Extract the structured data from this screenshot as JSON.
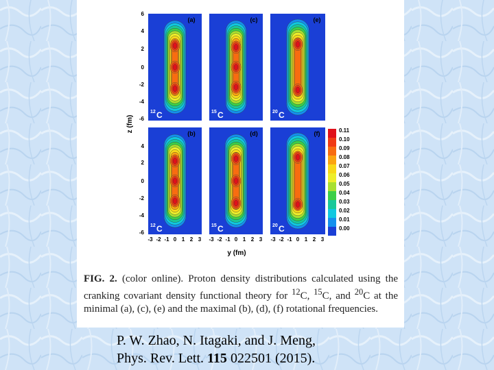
{
  "slide": {
    "background_color": "#cfe3f7",
    "citation": {
      "line1": "P. W. Zhao, N. Itagaki, and J. Meng,",
      "line2_journal": "Phys. Rev. Lett.",
      "line2_volume": "115",
      "line2_rest": "022501 (2015)."
    }
  },
  "figure": {
    "caption": {
      "label": "FIG. 2.",
      "text_part1": "(color online). Proton density distributions calculated using the cranking covariant density functional theory for ",
      "iso1_mass": "12",
      "iso1_sym": "C, ",
      "iso2_mass": "15",
      "iso2_sym": "C, and ",
      "iso3_mass": "20",
      "iso3_sym": "C at the minimal (a), (c), (e) and the maximal (b), (d), (f) rotational frequencies."
    },
    "panels": [
      {
        "label": "(a)",
        "isotope_mass": "12",
        "isotope_symbol": "C"
      },
      {
        "label": "(c)",
        "isotope_mass": "15",
        "isotope_symbol": "C"
      },
      {
        "label": "(e)",
        "isotope_mass": "20",
        "isotope_symbol": "C"
      },
      {
        "label": "(b)",
        "isotope_mass": "12",
        "isotope_symbol": "C"
      },
      {
        "label": "(d)",
        "isotope_mass": "15",
        "isotope_symbol": "C"
      },
      {
        "label": "(f)",
        "isotope_mass": "20",
        "isotope_symbol": "C"
      }
    ]
  },
  "chart_data": {
    "type": "heatmap",
    "title": "",
    "xlabel": "y (fm)",
    "ylabel": "z (fm)",
    "xlim": [
      -3,
      3
    ],
    "ylim": [
      -6,
      6
    ],
    "x_ticks": [
      "-3",
      "-2",
      "-1",
      "0",
      "1",
      "2",
      "3"
    ],
    "y_ticks": [
      "6",
      "4",
      "2",
      "0",
      "-2",
      "-4",
      "-6"
    ],
    "colorbar": {
      "ticks": [
        "0.11",
        "0.10",
        "0.09",
        "0.08",
        "0.07",
        "0.06",
        "0.05",
        "0.04",
        "0.03",
        "0.02",
        "0.01",
        "0.00"
      ],
      "colors": [
        "#e0101a",
        "#f03a14",
        "#f86c10",
        "#fba410",
        "#f8d818",
        "#eeee2a",
        "#a8e030",
        "#3ccf48",
        "#19c89a",
        "#10c8e0",
        "#1490ee",
        "#1a3fd6"
      ]
    },
    "panel_peaks_z_fm": {
      "(a)": [
        2.9,
        0,
        -2.9
      ],
      "(c)": [
        2.7,
        0,
        -2.7
      ],
      "(e)": [
        3.0,
        -3.0
      ],
      "(b)": [
        2.7,
        0,
        -2.7
      ],
      "(d)": [
        3.0,
        0,
        -3.0
      ],
      "(f)": [
        3.1,
        -3.1
      ]
    }
  }
}
